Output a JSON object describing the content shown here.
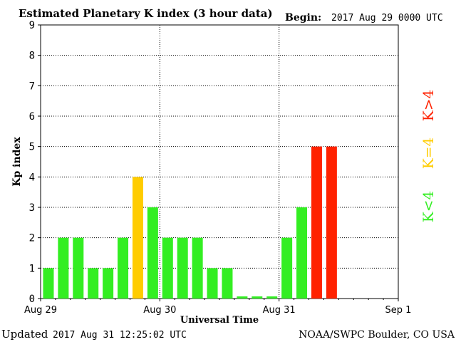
{
  "header": {
    "title": "Estimated Planetary K index (3 hour data)",
    "begin_label": "Begin:",
    "begin_value": "2017 Aug 29 0000 UTC"
  },
  "footer": {
    "updated_label": "Updated",
    "updated_value": "2017 Aug 31 12:25:02 UTC",
    "credit": "NOAA/SWPC Boulder, CO USA"
  },
  "legend": {
    "items": [
      {
        "label": "K<4",
        "color": "#33ee22"
      },
      {
        "label": "K=4",
        "color": "#ffcc00"
      },
      {
        "label": "K>4",
        "color": "#ff2200"
      }
    ]
  },
  "chart_data": {
    "type": "bar",
    "title": "Estimated Planetary K index (3 hour data)",
    "xlabel": "Universal Time",
    "ylabel": "Kp index",
    "ylim": [
      0,
      9
    ],
    "yticks": [
      0,
      1,
      2,
      3,
      4,
      5,
      6,
      7,
      8,
      9
    ],
    "xticks": [
      "Aug 29",
      "Aug 30",
      "Aug 31",
      "Sep 1"
    ],
    "x_slots": 24,
    "grid": true,
    "colors": {
      "below": "#33ee22",
      "equal": "#ffcc00",
      "above": "#ff2200"
    },
    "values": [
      1,
      2,
      2,
      1,
      1,
      2,
      4,
      3,
      2,
      2,
      2,
      1,
      1,
      0.07,
      0.07,
      0.07,
      2,
      3,
      5,
      5
    ]
  }
}
